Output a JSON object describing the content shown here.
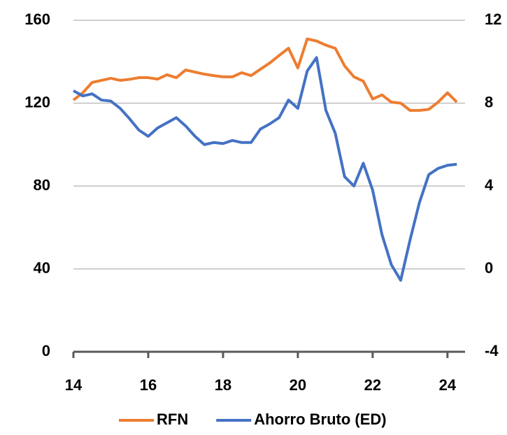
{
  "chart_data": {
    "type": "line",
    "x": [
      14,
      14.25,
      14.5,
      14.75,
      15,
      15.25,
      15.5,
      15.75,
      16,
      16.25,
      16.5,
      16.75,
      17,
      17.25,
      17.5,
      17.75,
      18,
      18.25,
      18.5,
      18.75,
      19,
      19.25,
      19.5,
      19.75,
      20,
      20.25,
      20.5,
      20.75,
      21,
      21.25,
      21.5,
      21.75,
      22,
      22.25,
      22.5,
      22.75,
      23,
      23.25,
      23.5,
      23.75,
      24,
      24.25
    ],
    "series": [
      {
        "name": "RFN",
        "color": "#ed7d31",
        "axis": "y",
        "values": [
          121.5,
          125,
          130,
          131,
          132,
          131,
          131.5,
          132.3,
          132.3,
          131.6,
          133.7,
          132.3,
          136,
          135,
          134,
          133.3,
          132.7,
          132.7,
          134.7,
          133.3,
          136.4,
          139.4,
          143,
          146.5,
          137,
          151,
          150,
          148,
          146.5,
          138,
          132.7,
          130.6,
          122,
          124,
          120.5,
          120,
          116.5,
          116.5,
          117,
          120.5,
          125,
          120.5
        ]
      },
      {
        "name": "Ahorro Bruto (ED)",
        "color": "#4472c4",
        "axis": "y2",
        "values": [
          8.6,
          8.35,
          8.45,
          8.15,
          8.1,
          7.75,
          7.25,
          6.7,
          6.4,
          6.8,
          7.05,
          7.3,
          6.9,
          6.4,
          6.0,
          6.1,
          6.05,
          6.2,
          6.1,
          6.1,
          6.75,
          7.0,
          7.3,
          8.15,
          7.75,
          9.55,
          10.2,
          7.65,
          6.55,
          4.45,
          4.0,
          5.1,
          3.8,
          1.65,
          0.2,
          -0.55,
          1.4,
          3.2,
          4.55,
          4.85,
          5.0,
          5.05
        ]
      }
    ],
    "xlim": [
      14,
      24.47
    ],
    "xticks": [
      14,
      16,
      18,
      20,
      22,
      24
    ],
    "ylim": [
      0,
      160
    ],
    "yticks": [
      0,
      40,
      80,
      120,
      160
    ],
    "y2lim": [
      -4,
      12
    ],
    "y2ticks": [
      -4,
      0,
      4,
      8,
      12
    ],
    "grid": true,
    "legend": "bottom"
  }
}
